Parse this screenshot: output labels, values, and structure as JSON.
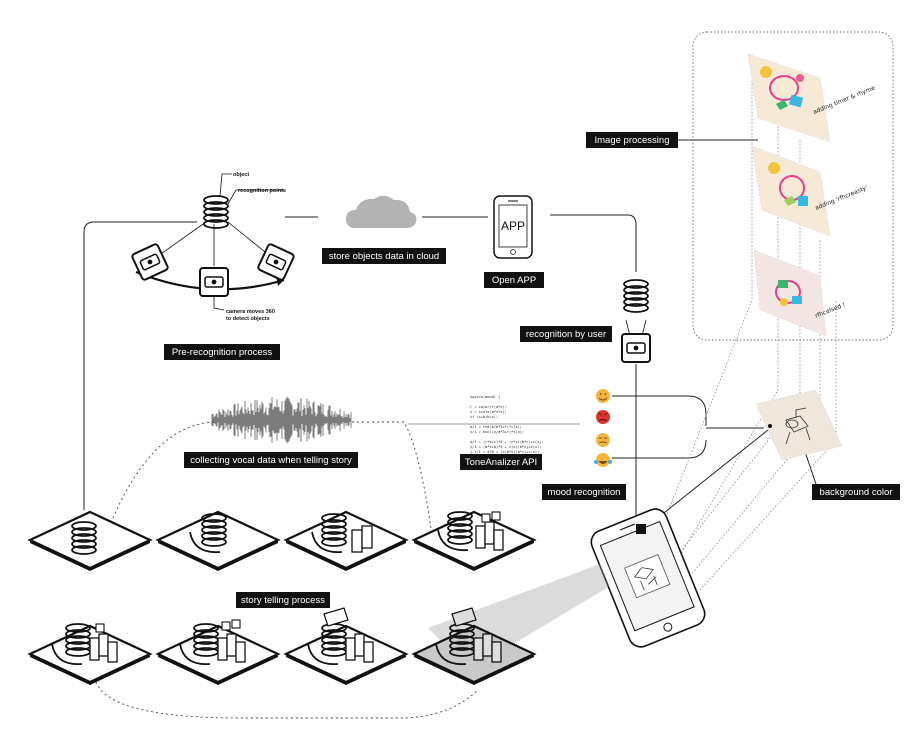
{
  "labels": {
    "image_processing": "Image processing",
    "store_cloud": "store objects data in cloud",
    "open_app": "Open APP",
    "recognition_by_user": "recognition by user",
    "pre_recognition": "Pre-recognition process",
    "collecting_vocal": "collecting vocal data when telling  story",
    "tone_analyzer": "ToneAnalizer API",
    "mood_recognition": "mood recognition",
    "background_color": "background color",
    "story_telling": "story telling process"
  },
  "annotations": {
    "object": "object",
    "recognition_points": "recognition points",
    "camera_moves_1": "camera moves 360",
    "camera_moves_2": "to detect objects"
  },
  "app_icon_text": "APP",
  "image_cards": [
    {
      "caption": "adding timer & rhyme"
    },
    {
      "caption": "adding 'rfhcreasty'"
    },
    {
      "caption": "rfhcelsed !"
    }
  ],
  "code_lines": [
    "switch(mood) {",
    "",
    "  r = color(r(a*x);",
    "  x = scale(b*x*x);",
    "  if (x+b/b+x);",
    "",
    "  a/1 = rnd(b/b*5+r)*c(x);",
    "  y/1 = bscl(x/a*3+r)*c(x);",
    "",
    "  a/1 = (r*b/c)*5 + (c*x)(b*c)+c(x);",
    "  y/1 = (b*c+a)*5 + c(x)(b*c)+c(x);",
    "  }  r/1 = a*b + (c(b*x)(b*c)+c(x);"
  ],
  "emojis": [
    {
      "name": "smiling-emoji",
      "color": "#f4b63d"
    },
    {
      "name": "angry-emoji",
      "color": "#d9352a"
    },
    {
      "name": "sad-emoji",
      "color": "#f4b63d"
    },
    {
      "name": "laughing-tears-emoji",
      "color": "#f4b63d"
    }
  ],
  "colors": {
    "label_bg": "#111111",
    "line": "#222222",
    "card_tint_1": "#f6ead6",
    "card_tint_2": "#f6ead6",
    "card_tint_3": "#f3e6e2",
    "bg_card": "#efe6dc",
    "cloud": "#b3b3b3"
  }
}
